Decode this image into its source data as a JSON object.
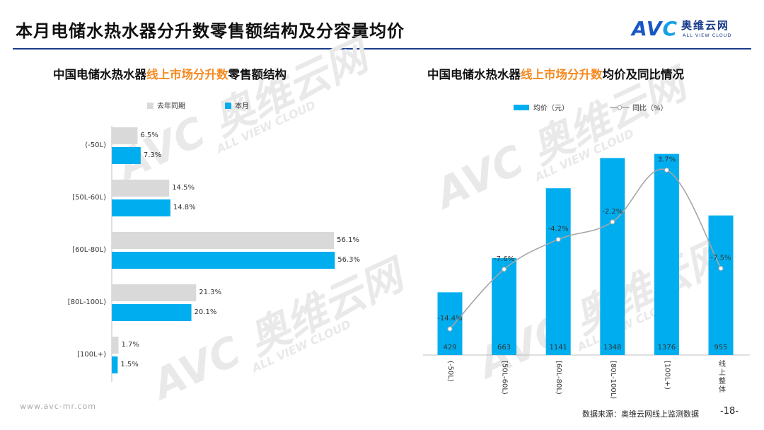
{
  "header": {
    "title": "本月电储水热水器分升数零售额结构及分容量均价",
    "logo_cn": "奥维云网",
    "logo_en": "ALL VIEW CLOUD",
    "brand_color": "#1a3c8c"
  },
  "left_panel": {
    "title_prefix": "中国电储水热水器",
    "title_highlight": "线上市场分升数",
    "title_suffix": "零售额结构"
  },
  "right_panel": {
    "title_prefix": "中国电储水热水器",
    "title_highlight": "线上市场分升数",
    "title_suffix": "均价及同比情况"
  },
  "watermark": {
    "text_main": "AVC 奥维云网",
    "text_sub": "ALL VIEW CLOUD"
  },
  "footer": {
    "url": "www.avc-mr.com",
    "source": "数据来源：奥维云网线上监测数据",
    "page": "-18-"
  },
  "chart_data": [
    {
      "type": "bar",
      "orientation": "horizontal",
      "categories": [
        "(-50L)",
        "[50L-60L)",
        "[60L-80L)",
        "[80L-100L)",
        "[100L+)"
      ],
      "series": [
        {
          "name": "去年同期",
          "values": [
            6.5,
            14.5,
            56.1,
            21.3,
            1.7
          ],
          "labels": [
            "6.5%",
            "14.5%",
            "56.1%",
            "21.3%",
            "1.7%"
          ],
          "color": "#d9d9d9"
        },
        {
          "name": "本月",
          "values": [
            7.3,
            14.8,
            56.3,
            20.1,
            1.5
          ],
          "labels": [
            "7.3%",
            "14.8%",
            "56.3%",
            "20.1%",
            "1.5%"
          ],
          "color": "#00aeef"
        }
      ],
      "legend": "top",
      "xlim": [
        0,
        60
      ],
      "grid": false
    },
    {
      "type": "bar+line",
      "categories": [
        "(-50L)",
        "[50L-60L)",
        "[60L-80L)",
        "[80L-100L)",
        "[100L+)",
        "线上整体"
      ],
      "series": [
        {
          "name": "均价（元）",
          "type": "bar",
          "values": [
            429,
            663,
            1141,
            1348,
            1376,
            955
          ],
          "labels": [
            "429",
            "663",
            "1141",
            "1348",
            "1376",
            "955"
          ],
          "color": "#00aeef"
        },
        {
          "name": "同比（%）",
          "type": "line",
          "values": [
            -14.4,
            -7.6,
            -4.2,
            -2.2,
            3.7,
            -7.5
          ],
          "labels": [
            "-14.4%",
            "-7.6%",
            "-4.2%",
            "-2.2%",
            "3.7%",
            "-7.5%"
          ],
          "color": "#a6a6a6"
        }
      ],
      "legend": "top",
      "ylim": [
        0,
        1500
      ],
      "y2lim": [
        -16,
        6
      ],
      "grid": false
    }
  ]
}
